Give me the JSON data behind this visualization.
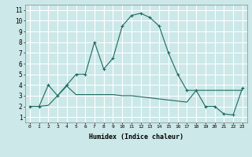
{
  "xlabel": "Humidex (Indice chaleur)",
  "background_color": "#cce8e8",
  "grid_color": "#ffffff",
  "line_color": "#1a6b5e",
  "xlim": [
    -0.5,
    23.5
  ],
  "ylim": [
    0.5,
    11.5
  ],
  "xticks": [
    0,
    1,
    2,
    3,
    4,
    5,
    6,
    7,
    8,
    9,
    10,
    11,
    12,
    13,
    14,
    15,
    16,
    17,
    18,
    19,
    20,
    21,
    22,
    23
  ],
  "yticks": [
    1,
    2,
    3,
    4,
    5,
    6,
    7,
    8,
    9,
    10,
    11
  ],
  "series1_x": [
    0,
    1,
    2,
    3,
    4,
    5,
    6,
    7,
    8,
    9,
    10,
    11,
    12,
    13,
    14,
    15,
    16,
    17,
    18,
    19,
    20,
    21,
    22,
    23
  ],
  "series1_y": [
    2.0,
    2.0,
    4.0,
    3.0,
    4.0,
    5.0,
    5.0,
    8.0,
    5.5,
    6.5,
    9.5,
    10.5,
    10.7,
    10.3,
    9.5,
    7.0,
    5.0,
    3.5,
    3.5,
    2.0,
    2.0,
    1.3,
    1.2,
    3.7
  ],
  "series2_x": [
    0,
    1,
    2,
    3,
    4,
    5,
    6,
    7,
    8,
    9,
    10,
    11,
    12,
    13,
    14,
    15,
    16,
    17,
    18,
    19,
    20,
    21,
    22,
    23
  ],
  "series2_y": [
    2.0,
    2.0,
    2.1,
    3.0,
    3.9,
    3.1,
    3.1,
    3.1,
    3.1,
    3.1,
    3.0,
    3.0,
    2.9,
    2.8,
    2.7,
    2.6,
    2.5,
    2.4,
    3.5,
    3.5,
    3.5,
    3.5,
    3.5,
    3.5
  ]
}
